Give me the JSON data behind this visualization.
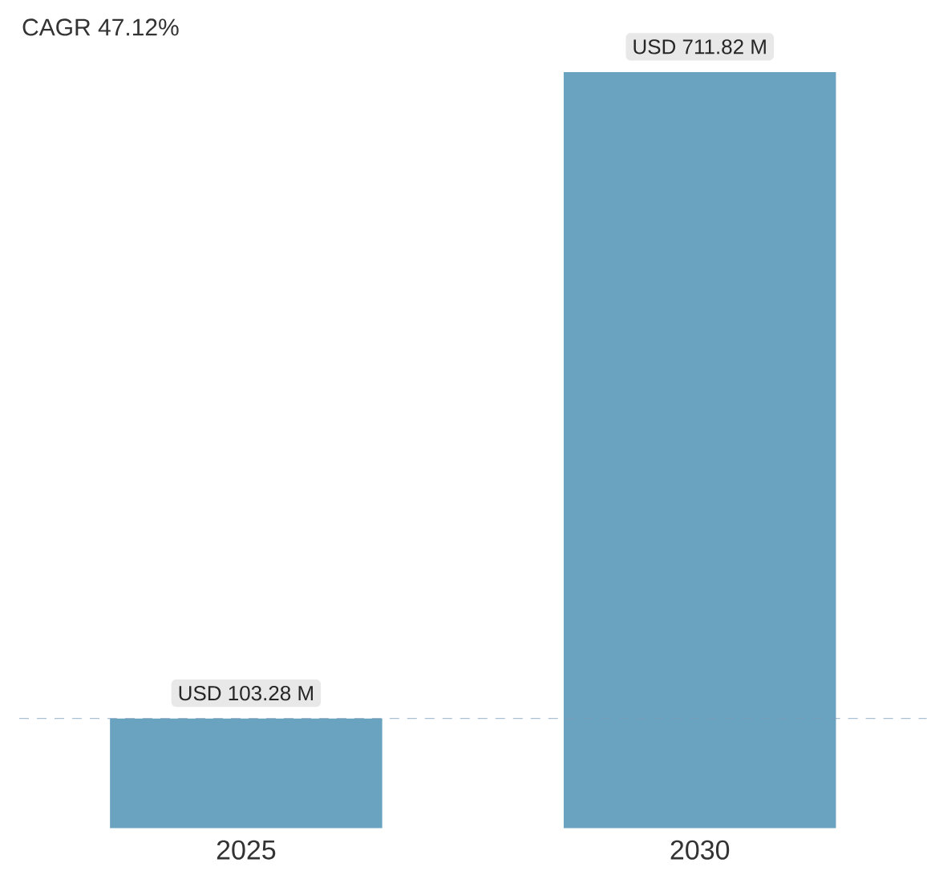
{
  "chart_data": {
    "type": "bar",
    "title": "CAGR 47.12%",
    "categories": [
      "2025",
      "2030"
    ],
    "values": [
      103.28,
      711.82
    ],
    "color": "#6aa3c0",
    "value_labels": [
      "USD 103.28 M",
      "USD 711.82 M"
    ],
    "ref_lines": [
      {
        "axis": "y",
        "value": 103.28,
        "color": "#7b9cb8",
        "line_style": "dashed"
      }
    ],
    "tick_labels": "x"
  }
}
